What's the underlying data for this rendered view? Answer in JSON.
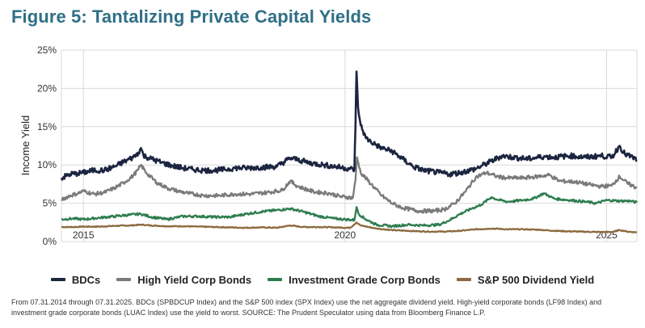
{
  "title": "Figure 5: Tantalizing Private Capital Yields",
  "footnote": "From 07.31.2014 through 07.31.2025. BDCs (SPBDCUP Index) and the S&P 500 index (SPX Index) use the net aggregate dividend yield. High-yield corporate bonds (LF98 Index) and investment grade corporate bonds (LUAC Index) use the yield to worst. SOURCE: The Prudent Speculator using data from Bloomberg Finance L.P.",
  "colors": {
    "bdc": "#1b2540",
    "hy": "#7a7a7a",
    "ig": "#2e7d4f",
    "sp": "#8c6a3f",
    "grid": "#d9d9d9"
  },
  "chart_data": {
    "type": "line",
    "ylabel": "Income Yield",
    "ylim": [
      0,
      25
    ],
    "xlim": [
      2014.58,
      2025.58
    ],
    "yticks": [
      "0%",
      "5%",
      "10%",
      "15%",
      "20%",
      "25%"
    ],
    "ytick_values": [
      0,
      5,
      10,
      15,
      20,
      25
    ],
    "xticks": [
      "2015",
      "2020",
      "2025"
    ],
    "xtick_values": [
      2015,
      2020,
      2025
    ],
    "series": [
      {
        "name": "BDCs",
        "color": "#1b2540",
        "points": [
          [
            2014.58,
            8.3
          ],
          [
            2014.75,
            8.8
          ],
          [
            2014.9,
            8.9
          ],
          [
            2015.0,
            9.0
          ],
          [
            2015.2,
            9.3
          ],
          [
            2015.4,
            9.3
          ],
          [
            2015.6,
            9.8
          ],
          [
            2015.8,
            10.5
          ],
          [
            2015.95,
            11.0
          ],
          [
            2016.05,
            11.6
          ],
          [
            2016.1,
            12.2
          ],
          [
            2016.15,
            11.2
          ],
          [
            2016.3,
            10.8
          ],
          [
            2016.5,
            10.3
          ],
          [
            2016.7,
            9.9
          ],
          [
            2016.9,
            9.6
          ],
          [
            2017.1,
            9.4
          ],
          [
            2017.3,
            9.3
          ],
          [
            2017.5,
            9.3
          ],
          [
            2017.7,
            9.4
          ],
          [
            2017.9,
            9.6
          ],
          [
            2018.1,
            9.6
          ],
          [
            2018.4,
            9.7
          ],
          [
            2018.7,
            9.8
          ],
          [
            2018.95,
            10.9
          ],
          [
            2019.1,
            10.7
          ],
          [
            2019.3,
            10.3
          ],
          [
            2019.6,
            10.0
          ],
          [
            2019.9,
            9.7
          ],
          [
            2020.1,
            9.5
          ],
          [
            2020.18,
            9.4
          ],
          [
            2020.2,
            15.0
          ],
          [
            2020.22,
            22.2
          ],
          [
            2020.25,
            17.5
          ],
          [
            2020.3,
            15.2
          ],
          [
            2020.4,
            13.5
          ],
          [
            2020.55,
            12.8
          ],
          [
            2020.7,
            12.2
          ],
          [
            2020.9,
            11.8
          ],
          [
            2021.1,
            10.8
          ],
          [
            2021.3,
            9.8
          ],
          [
            2021.5,
            9.3
          ],
          [
            2021.8,
            9.0
          ],
          [
            2022.0,
            8.8
          ],
          [
            2022.2,
            9.0
          ],
          [
            2022.5,
            9.5
          ],
          [
            2022.8,
            10.5
          ],
          [
            2023.0,
            11.2
          ],
          [
            2023.2,
            11.0
          ],
          [
            2023.5,
            10.8
          ],
          [
            2023.8,
            11.1
          ],
          [
            2024.0,
            11.0
          ],
          [
            2024.3,
            11.2
          ],
          [
            2024.6,
            11.0
          ],
          [
            2024.9,
            11.2
          ],
          [
            2025.1,
            11.0
          ],
          [
            2025.25,
            12.5
          ],
          [
            2025.35,
            11.4
          ],
          [
            2025.5,
            11.0
          ],
          [
            2025.58,
            10.6
          ]
        ]
      },
      {
        "name": "High Yield Corp Bonds",
        "color": "#7a7a7a",
        "points": [
          [
            2014.58,
            5.5
          ],
          [
            2014.75,
            6.0
          ],
          [
            2014.9,
            6.3
          ],
          [
            2015.0,
            6.6
          ],
          [
            2015.2,
            6.2
          ],
          [
            2015.4,
            6.4
          ],
          [
            2015.6,
            7.0
          ],
          [
            2015.8,
            7.8
          ],
          [
            2015.95,
            8.6
          ],
          [
            2016.05,
            9.4
          ],
          [
            2016.1,
            10.0
          ],
          [
            2016.2,
            9.0
          ],
          [
            2016.4,
            7.7
          ],
          [
            2016.6,
            7.0
          ],
          [
            2016.8,
            6.6
          ],
          [
            2017.0,
            6.3
          ],
          [
            2017.3,
            6.0
          ],
          [
            2017.6,
            6.0
          ],
          [
            2017.9,
            6.2
          ],
          [
            2018.2,
            6.2
          ],
          [
            2018.5,
            6.4
          ],
          [
            2018.8,
            6.7
          ],
          [
            2018.95,
            7.9
          ],
          [
            2019.1,
            7.2
          ],
          [
            2019.4,
            6.5
          ],
          [
            2019.7,
            6.3
          ],
          [
            2019.9,
            5.9
          ],
          [
            2020.15,
            5.7
          ],
          [
            2020.2,
            8.0
          ],
          [
            2020.23,
            11.0
          ],
          [
            2020.3,
            9.0
          ],
          [
            2020.5,
            7.5
          ],
          [
            2020.7,
            6.0
          ],
          [
            2020.9,
            5.0
          ],
          [
            2021.1,
            4.4
          ],
          [
            2021.4,
            4.0
          ],
          [
            2021.7,
            4.0
          ],
          [
            2021.9,
            4.2
          ],
          [
            2022.1,
            5.0
          ],
          [
            2022.3,
            6.5
          ],
          [
            2022.5,
            8.4
          ],
          [
            2022.7,
            9.0
          ],
          [
            2022.9,
            8.5
          ],
          [
            2023.1,
            8.3
          ],
          [
            2023.4,
            8.3
          ],
          [
            2023.7,
            8.5
          ],
          [
            2023.9,
            8.7
          ],
          [
            2024.1,
            7.9
          ],
          [
            2024.4,
            7.8
          ],
          [
            2024.7,
            7.4
          ],
          [
            2024.9,
            7.2
          ],
          [
            2025.1,
            7.3
          ],
          [
            2025.25,
            8.5
          ],
          [
            2025.4,
            7.6
          ],
          [
            2025.58,
            7.0
          ]
        ]
      },
      {
        "name": "Investment Grade Corp Bonds",
        "color": "#2e7d4f",
        "points": [
          [
            2014.58,
            2.9
          ],
          [
            2014.8,
            3.0
          ],
          [
            2015.0,
            2.9
          ],
          [
            2015.3,
            3.1
          ],
          [
            2015.6,
            3.3
          ],
          [
            2015.9,
            3.5
          ],
          [
            2016.1,
            3.6
          ],
          [
            2016.3,
            3.2
          ],
          [
            2016.6,
            2.9
          ],
          [
            2016.9,
            3.3
          ],
          [
            2017.2,
            3.3
          ],
          [
            2017.5,
            3.2
          ],
          [
            2017.8,
            3.2
          ],
          [
            2018.1,
            3.6
          ],
          [
            2018.4,
            3.9
          ],
          [
            2018.7,
            4.1
          ],
          [
            2018.95,
            4.3
          ],
          [
            2019.2,
            3.9
          ],
          [
            2019.5,
            3.3
          ],
          [
            2019.8,
            3.0
          ],
          [
            2020.0,
            2.9
          ],
          [
            2020.18,
            2.8
          ],
          [
            2020.22,
            4.5
          ],
          [
            2020.26,
            3.6
          ],
          [
            2020.4,
            2.9
          ],
          [
            2020.6,
            2.2
          ],
          [
            2020.9,
            2.0
          ],
          [
            2021.2,
            2.2
          ],
          [
            2021.5,
            2.1
          ],
          [
            2021.8,
            2.2
          ],
          [
            2022.0,
            2.8
          ],
          [
            2022.2,
            3.6
          ],
          [
            2022.45,
            4.4
          ],
          [
            2022.6,
            4.8
          ],
          [
            2022.8,
            5.8
          ],
          [
            2022.9,
            5.5
          ],
          [
            2023.1,
            5.2
          ],
          [
            2023.4,
            5.4
          ],
          [
            2023.6,
            5.6
          ],
          [
            2023.8,
            6.3
          ],
          [
            2024.0,
            5.6
          ],
          [
            2024.3,
            5.4
          ],
          [
            2024.6,
            5.2
          ],
          [
            2024.8,
            5.0
          ],
          [
            2025.0,
            5.4
          ],
          [
            2025.25,
            5.3
          ],
          [
            2025.45,
            5.3
          ],
          [
            2025.58,
            5.1
          ]
        ]
      },
      {
        "name": "S&P 500 Dividend Yield",
        "color": "#8c6a3f",
        "points": [
          [
            2014.58,
            1.9
          ],
          [
            2014.8,
            1.9
          ],
          [
            2015.0,
            1.95
          ],
          [
            2015.3,
            1.95
          ],
          [
            2015.6,
            2.05
          ],
          [
            2015.9,
            2.1
          ],
          [
            2016.1,
            2.2
          ],
          [
            2016.3,
            2.1
          ],
          [
            2016.6,
            2.0
          ],
          [
            2016.9,
            2.0
          ],
          [
            2017.2,
            1.95
          ],
          [
            2017.5,
            1.9
          ],
          [
            2017.8,
            1.85
          ],
          [
            2018.1,
            1.8
          ],
          [
            2018.4,
            1.85
          ],
          [
            2018.7,
            1.8
          ],
          [
            2018.95,
            2.1
          ],
          [
            2019.2,
            1.9
          ],
          [
            2019.5,
            1.9
          ],
          [
            2019.8,
            1.85
          ],
          [
            2020.1,
            1.8
          ],
          [
            2020.22,
            2.5
          ],
          [
            2020.3,
            2.1
          ],
          [
            2020.6,
            1.7
          ],
          [
            2020.9,
            1.5
          ],
          [
            2021.2,
            1.4
          ],
          [
            2021.6,
            1.3
          ],
          [
            2021.9,
            1.3
          ],
          [
            2022.2,
            1.4
          ],
          [
            2022.5,
            1.6
          ],
          [
            2022.8,
            1.7
          ],
          [
            2023.1,
            1.6
          ],
          [
            2023.4,
            1.6
          ],
          [
            2023.7,
            1.55
          ],
          [
            2023.9,
            1.45
          ],
          [
            2024.2,
            1.35
          ],
          [
            2024.5,
            1.3
          ],
          [
            2024.8,
            1.25
          ],
          [
            2025.1,
            1.25
          ],
          [
            2025.25,
            1.5
          ],
          [
            2025.4,
            1.3
          ],
          [
            2025.58,
            1.2
          ]
        ]
      }
    ]
  }
}
